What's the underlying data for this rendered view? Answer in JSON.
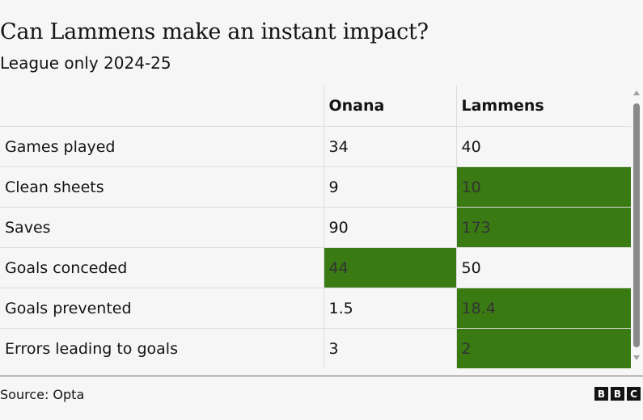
{
  "title": "Can Lammens make an instant impact?",
  "subtitle": "League only 2024-25",
  "chart_data": {
    "type": "table",
    "columns": [
      "",
      "Onana",
      "Lammens"
    ],
    "rows": [
      {
        "label": "Games played",
        "values": [
          "34",
          "40"
        ],
        "highlight": [
          false,
          false
        ]
      },
      {
        "label": "Clean sheets",
        "values": [
          "9",
          "10"
        ],
        "highlight": [
          false,
          true
        ]
      },
      {
        "label": "Saves",
        "values": [
          "90",
          "173"
        ],
        "highlight": [
          false,
          true
        ]
      },
      {
        "label": "Goals conceded",
        "values": [
          "44",
          "50"
        ],
        "highlight": [
          true,
          false
        ]
      },
      {
        "label": "Goals prevented",
        "values": [
          "1.5",
          "18.4"
        ],
        "highlight": [
          false,
          true
        ]
      },
      {
        "label": "Errors leading to goals",
        "values": [
          "3",
          "2"
        ],
        "highlight": [
          false,
          true
        ]
      }
    ],
    "highlight_color": "#3a7a12"
  },
  "source": "Source: Opta",
  "logo": [
    "B",
    "B",
    "C"
  ]
}
